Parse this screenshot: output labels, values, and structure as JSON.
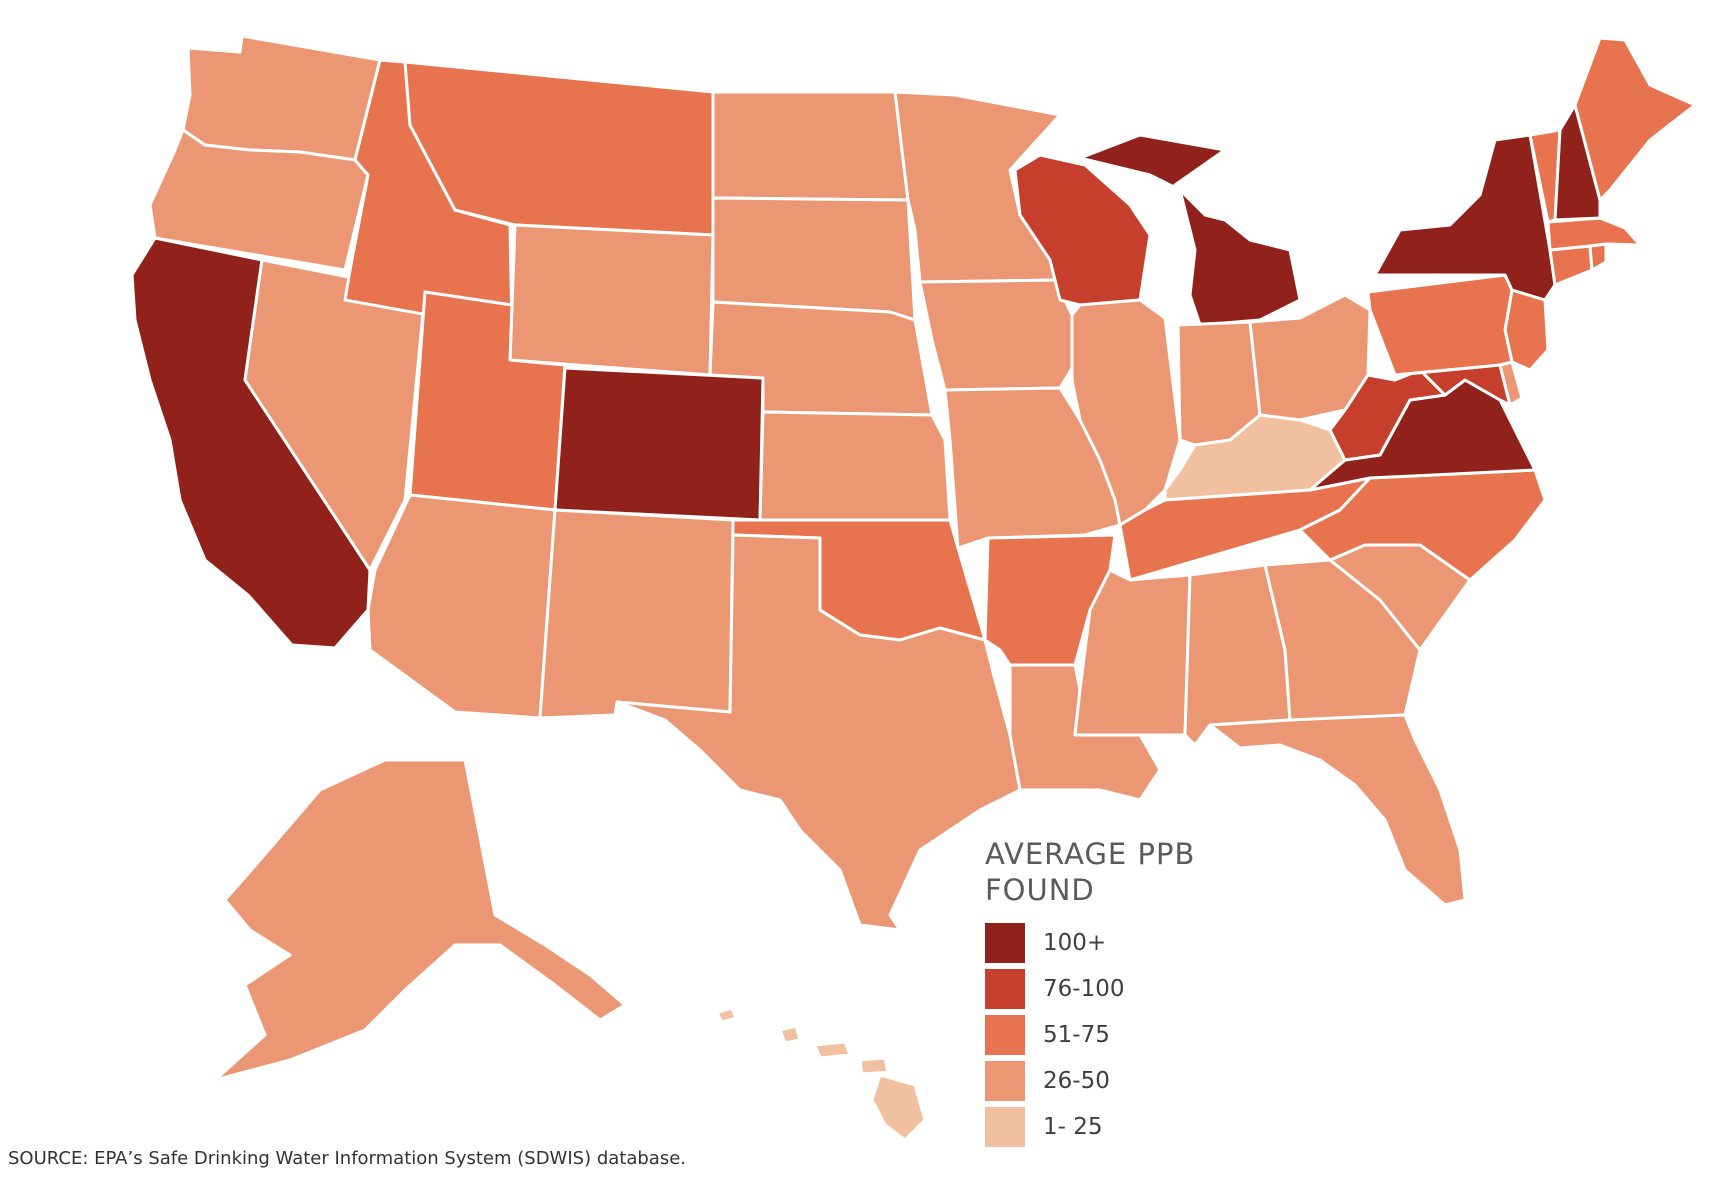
{
  "legend": {
    "title_line1": "AVERAGE PPB",
    "title_line2": "FOUND",
    "items": [
      {
        "label": "100+",
        "color": "#90211b"
      },
      {
        "label": "76-100",
        "color": "#c53f2c"
      },
      {
        "label": "51-75",
        "color": "#e7734f"
      },
      {
        "label": "26-50",
        "color": "#eb9774"
      },
      {
        "label": "1- 25",
        "color": "#f1c0a0"
      }
    ]
  },
  "source": "SOURCE: EPA’s Safe Drinking Water Information System (SDWIS) database.",
  "states": {
    "WA": "26-50",
    "OR": "26-50",
    "CA": "100+",
    "NV": "26-50",
    "ID": "51-75",
    "MT": "51-75",
    "WY": "26-50",
    "UT": "51-75",
    "CO": "100+",
    "AZ": "26-50",
    "NM": "26-50",
    "ND": "26-50",
    "SD": "26-50",
    "NE": "26-50",
    "KS": "26-50",
    "OK": "51-75",
    "TX": "26-50",
    "MN": "26-50",
    "IA": "26-50",
    "MO": "26-50",
    "AR": "51-75",
    "LA": "26-50",
    "WI": "76-100",
    "IL": "26-50",
    "MI": "100+",
    "IN": "26-50",
    "OH": "26-50",
    "KY": "1- 25",
    "TN": "51-75",
    "MS": "26-50",
    "AL": "26-50",
    "GA": "26-50",
    "FL": "26-50",
    "SC": "26-50",
    "NC": "51-75",
    "VA": "100+",
    "WV": "76-100",
    "MD": "76-100",
    "DE": "26-50",
    "NJ": "51-75",
    "PA": "51-75",
    "NY": "100+",
    "CT": "51-75",
    "RI": "51-75",
    "MA": "51-75",
    "VT": "51-75",
    "NH": "100+",
    "ME": "51-75",
    "AK": "26-50",
    "HI": "1- 25"
  }
}
